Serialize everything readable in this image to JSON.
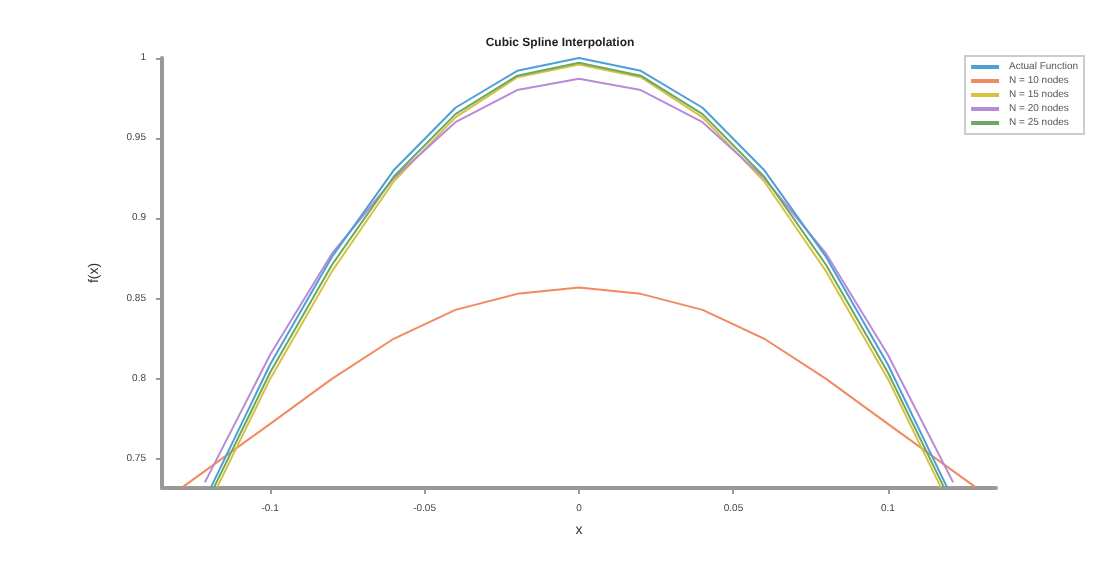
{
  "chart_data": {
    "type": "line",
    "title": "Cubic Spline Interpolation",
    "xlabel": "x",
    "ylabel": "f(x)",
    "xlim": [
      -0.135,
      0.135
    ],
    "xticks": [
      -0.1,
      -0.05,
      0,
      0.05,
      0.1
    ],
    "ylim": [
      0.732,
      1
    ],
    "yticks": [
      0.75,
      0.8,
      0.85,
      0.9,
      0.95,
      1
    ],
    "grid": false,
    "legend": "top right",
    "marker": "none",
    "line_style": "solid",
    "series": [
      {
        "name": "Actual Function",
        "color": "#4d9fd6",
        "x": [
          -0.119,
          -0.1,
          -0.08,
          -0.06,
          -0.04,
          -0.02,
          0,
          0.02,
          0.04,
          0.06,
          0.08,
          0.1,
          0.119
        ],
        "values": [
          0.733,
          0.809,
          0.876,
          0.93,
          0.969,
          0.992,
          1,
          0.992,
          0.969,
          0.93,
          0.876,
          0.809,
          0.733
        ]
      },
      {
        "name": "N = 10 nodes",
        "color": "#f08a60",
        "x": [
          -0.128,
          -0.1,
          -0.08,
          -0.06,
          -0.04,
          -0.02,
          0,
          0.02,
          0.04,
          0.06,
          0.08,
          0.1,
          0.128
        ],
        "values": [
          0.733,
          0.772,
          0.8,
          0.825,
          0.843,
          0.853,
          0.857,
          0.853,
          0.843,
          0.825,
          0.8,
          0.772,
          0.733
        ]
      },
      {
        "name": "N = 15 nodes",
        "color": "#d8c040",
        "x": [
          -0.117,
          -0.1,
          -0.08,
          -0.06,
          -0.04,
          -0.02,
          0,
          0.02,
          0.04,
          0.06,
          0.08,
          0.1,
          0.117
        ],
        "values": [
          0.733,
          0.8,
          0.867,
          0.923,
          0.963,
          0.988,
          0.996,
          0.988,
          0.963,
          0.923,
          0.867,
          0.8,
          0.733
        ]
      },
      {
        "name": "N = 20 nodes",
        "color": "#b88ad8",
        "x": [
          -0.121,
          -0.1,
          -0.08,
          -0.06,
          -0.04,
          -0.02,
          0,
          0.02,
          0.04,
          0.06,
          0.08,
          0.1,
          0.121
        ],
        "values": [
          0.736,
          0.815,
          0.878,
          0.925,
          0.96,
          0.98,
          0.987,
          0.98,
          0.96,
          0.925,
          0.878,
          0.815,
          0.736
        ]
      },
      {
        "name": "N = 25 nodes",
        "color": "#6aaa60",
        "x": [
          -0.118,
          -0.1,
          -0.08,
          -0.06,
          -0.04,
          -0.02,
          0,
          0.02,
          0.04,
          0.06,
          0.08,
          0.1,
          0.118
        ],
        "values": [
          0.733,
          0.804,
          0.871,
          0.926,
          0.965,
          0.989,
          0.997,
          0.989,
          0.965,
          0.926,
          0.871,
          0.804,
          0.733
        ]
      }
    ]
  }
}
